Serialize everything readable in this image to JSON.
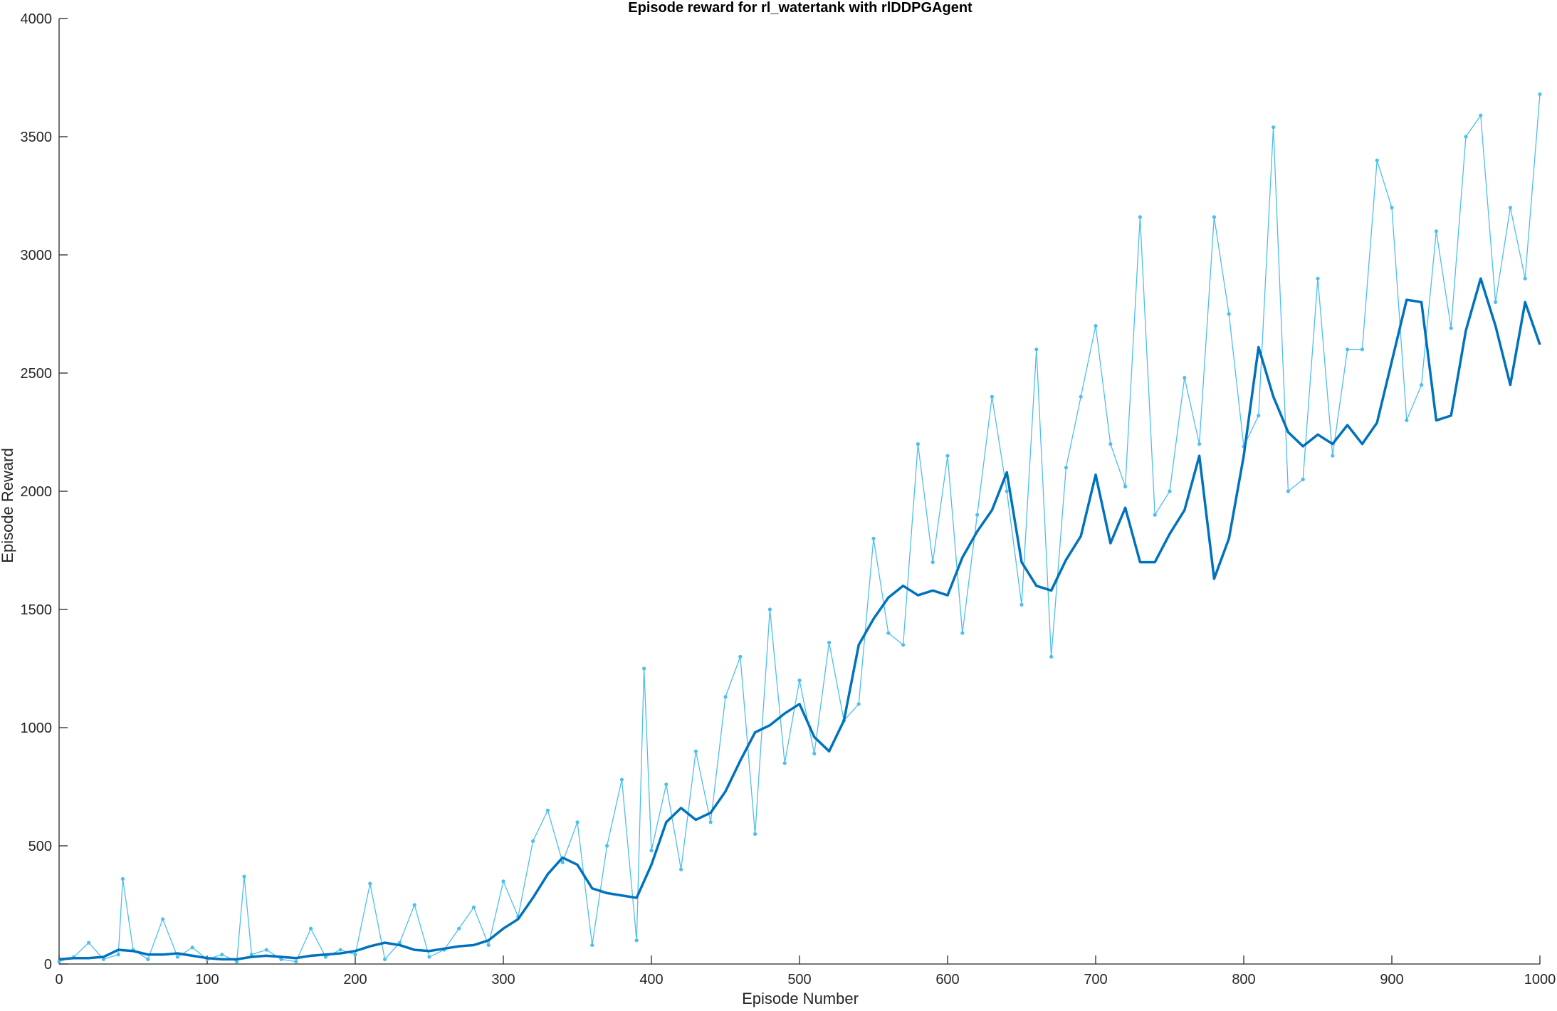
{
  "chart_data": {
    "type": "line",
    "title": "Episode reward for rl_watertank with rlDDPGAgent",
    "xlabel": "Episode Number",
    "ylabel": "Episode Reward",
    "xlim": [
      0,
      1000
    ],
    "ylim": [
      0,
      4000
    ],
    "xticks": [
      0,
      100,
      200,
      300,
      400,
      500,
      600,
      700,
      800,
      900,
      1000
    ],
    "yticks": [
      0,
      500,
      1000,
      1500,
      2000,
      2500,
      3000,
      3500,
      4000
    ],
    "grid": false,
    "colors": {
      "episode_reward": "#4DBEEE",
      "average_reward": "#0072BD"
    },
    "series": [
      {
        "key": "episode_reward",
        "style": "thin line with point markers",
        "x": [
          0,
          10,
          20,
          30,
          40,
          43,
          50,
          60,
          70,
          80,
          90,
          100,
          110,
          120,
          125,
          130,
          140,
          150,
          160,
          170,
          180,
          190,
          200,
          210,
          220,
          230,
          240,
          250,
          260,
          270,
          280,
          290,
          300,
          310,
          320,
          330,
          340,
          350,
          360,
          370,
          380,
          390,
          395,
          400,
          410,
          420,
          430,
          440,
          450,
          460,
          470,
          480,
          490,
          500,
          510,
          520,
          530,
          540,
          550,
          560,
          570,
          580,
          590,
          600,
          610,
          620,
          630,
          640,
          650,
          660,
          670,
          680,
          690,
          700,
          710,
          720,
          730,
          740,
          750,
          760,
          770,
          780,
          790,
          800,
          810,
          820,
          830,
          840,
          850,
          860,
          870,
          880,
          890,
          900,
          910,
          920,
          930,
          940,
          950,
          960,
          970,
          980,
          990,
          1000
        ],
        "y": [
          10,
          30,
          90,
          20,
          40,
          360,
          60,
          20,
          190,
          30,
          70,
          20,
          40,
          10,
          370,
          40,
          60,
          20,
          10,
          150,
          30,
          60,
          40,
          340,
          20,
          90,
          250,
          30,
          60,
          150,
          240,
          80,
          350,
          200,
          520,
          650,
          430,
          600,
          80,
          500,
          780,
          100,
          1250,
          480,
          760,
          400,
          900,
          600,
          1130,
          1300,
          550,
          1500,
          850,
          1200,
          890,
          1360,
          1030,
          1100,
          1800,
          1400,
          1350,
          2200,
          1700,
          2150,
          1400,
          1900,
          2400,
          2000,
          1520,
          2600,
          1300,
          2100,
          2400,
          2700,
          2200,
          2020,
          3160,
          1900,
          2000,
          2480,
          2200,
          3160,
          2750,
          2190,
          2320,
          3540,
          2000,
          2050,
          2900,
          2150,
          2600,
          2600,
          3400,
          3200,
          2300,
          2450,
          3100,
          2690,
          3500,
          3590,
          2800,
          3200,
          2900,
          3680
        ]
      },
      {
        "key": "average_reward",
        "style": "thick line",
        "x": [
          0,
          10,
          20,
          30,
          40,
          50,
          60,
          70,
          80,
          90,
          100,
          110,
          120,
          130,
          140,
          150,
          160,
          170,
          180,
          190,
          200,
          210,
          220,
          230,
          240,
          250,
          260,
          270,
          280,
          290,
          300,
          310,
          320,
          330,
          340,
          350,
          360,
          370,
          380,
          390,
          400,
          410,
          420,
          430,
          440,
          450,
          460,
          470,
          480,
          490,
          500,
          510,
          520,
          530,
          540,
          550,
          560,
          570,
          580,
          590,
          600,
          610,
          620,
          630,
          640,
          650,
          660,
          670,
          680,
          690,
          700,
          710,
          720,
          730,
          740,
          750,
          760,
          770,
          780,
          790,
          800,
          810,
          820,
          830,
          840,
          850,
          860,
          870,
          880,
          890,
          900,
          910,
          920,
          930,
          940,
          950,
          960,
          970,
          980,
          990,
          1000
        ],
        "y": [
          20,
          25,
          25,
          30,
          60,
          55,
          40,
          40,
          45,
          35,
          25,
          20,
          20,
          30,
          35,
          30,
          25,
          35,
          40,
          45,
          55,
          75,
          90,
          80,
          60,
          55,
          65,
          75,
          80,
          100,
          150,
          190,
          280,
          380,
          450,
          420,
          320,
          300,
          290,
          280,
          420,
          600,
          660,
          610,
          640,
          730,
          860,
          980,
          1010,
          1060,
          1100,
          960,
          900,
          1030,
          1350,
          1460,
          1550,
          1600,
          1560,
          1580,
          1560,
          1720,
          1830,
          1920,
          2080,
          1700,
          1600,
          1580,
          1710,
          1810,
          2070,
          1780,
          1930,
          1700,
          1700,
          1820,
          1920,
          2150,
          1630,
          1800,
          2150,
          2610,
          2400,
          2250,
          2190,
          2240,
          2200,
          2280,
          2200,
          2290,
          2550,
          2810,
          2800,
          2300,
          2320,
          2680,
          2900,
          2700,
          2450,
          2800,
          2620
        ]
      }
    ]
  }
}
